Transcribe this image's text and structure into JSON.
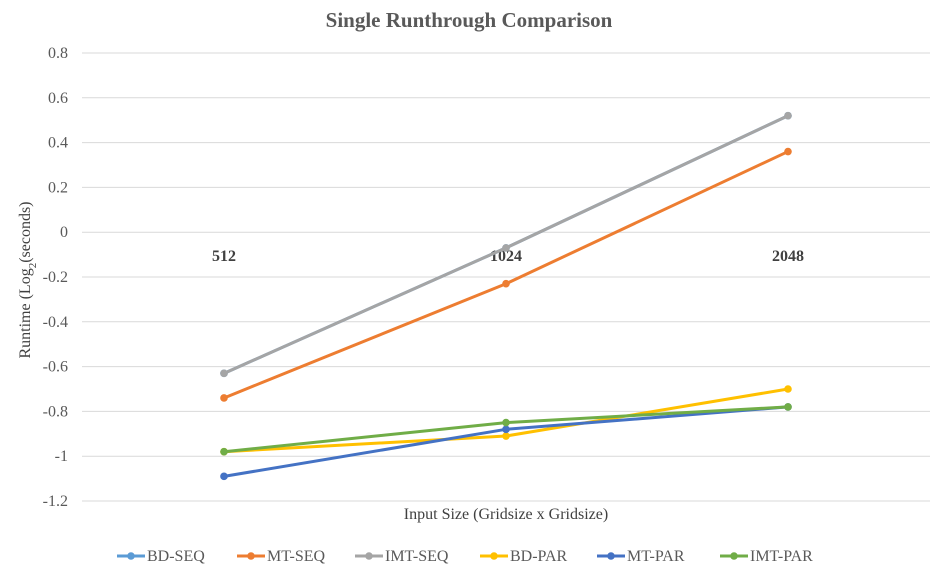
{
  "chart_data": {
    "type": "line",
    "title": "Single Runthrough Comparison",
    "xlabel": "Input Size (Gridsize x Gridsize)",
    "ylabel_prefix": "Runtime (Log",
    "ylabel_sub": "2",
    "ylabel_suffix": "(seconds)",
    "categories": [
      "512",
      "1024",
      "2048"
    ],
    "ylim": [
      -1.2,
      0.8
    ],
    "yticks": [
      "0.8",
      "0.6",
      "0.4",
      "0.2",
      "0",
      "-0.2",
      "-0.4",
      "-0.6",
      "-0.8",
      "-1",
      "-1.2"
    ],
    "ytick_values": [
      0.8,
      0.6,
      0.4,
      0.2,
      0,
      -0.2,
      -0.4,
      -0.6,
      -0.8,
      -1,
      -1.2
    ],
    "grid": true,
    "legend_position": "bottom",
    "series": [
      {
        "name": "BD-SEQ",
        "color": "#5B9BD5",
        "values": [
          -0.63,
          -0.07,
          0.52
        ]
      },
      {
        "name": "MT-SEQ",
        "color": "#ED7D31",
        "values": [
          -0.74,
          -0.23,
          0.36
        ]
      },
      {
        "name": "IMT-SEQ",
        "color": "#A5A5A5",
        "values": [
          -0.63,
          -0.07,
          0.52
        ]
      },
      {
        "name": "BD-PAR",
        "color": "#FFC000",
        "values": [
          -0.98,
          -0.91,
          -0.7
        ]
      },
      {
        "name": "MT-PAR",
        "color": "#4472C4",
        "values": [
          -1.09,
          -0.88,
          -0.78
        ]
      },
      {
        "name": "IMT-PAR",
        "color": "#70AD47",
        "values": [
          -0.98,
          -0.85,
          -0.78
        ]
      }
    ]
  }
}
